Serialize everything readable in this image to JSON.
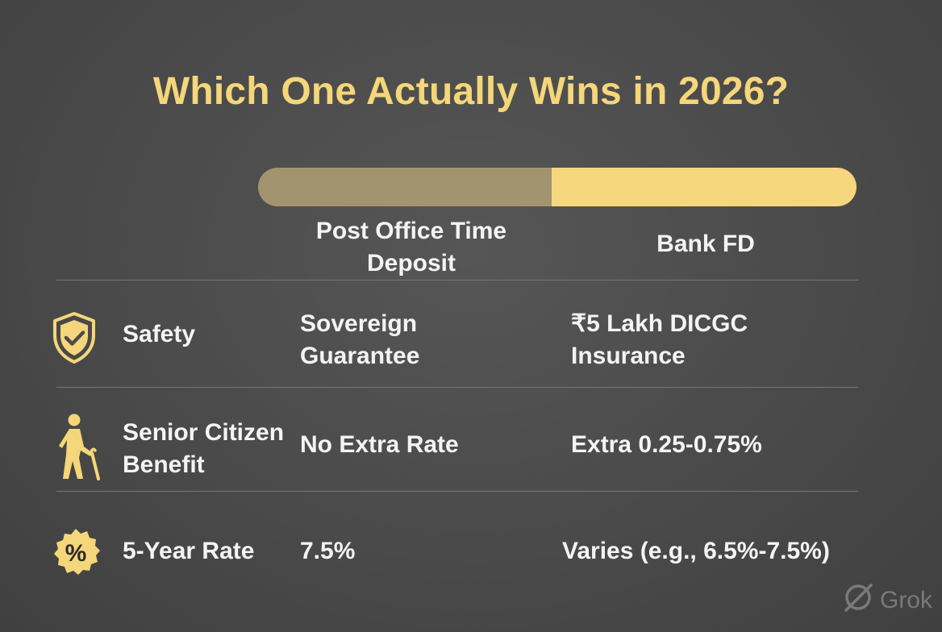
{
  "title": "Which One Actually Wins in 2026?",
  "comparison_bar": {
    "left_share": 0.49,
    "left_color": "#a39470",
    "right_color": "#f7d77d"
  },
  "columns": {
    "post_office": "Post Office Time Deposit",
    "bank_fd": "Bank FD"
  },
  "rows": [
    {
      "icon": "shield-check-icon",
      "label": "Safety",
      "post_office": "Sovereign Guarantee",
      "bank_fd": "₹5 Lakh DICGC Insurance"
    },
    {
      "icon": "senior-citizen-icon",
      "label": "Senior Citizen Benefit",
      "post_office": "No Extra Rate",
      "bank_fd": "Extra 0.25-0.75%"
    },
    {
      "icon": "percent-badge-icon",
      "label": "5-Year Rate",
      "post_office": "7.5%",
      "bank_fd": "Varies (e.g., 6.5%-7.5%)"
    }
  ],
  "watermark": {
    "icon": "grok-logo-icon",
    "text": "Grok"
  },
  "colors": {
    "accent": "#f5d67a",
    "background": "#4a4a4a",
    "text": "#f4f4f4"
  }
}
